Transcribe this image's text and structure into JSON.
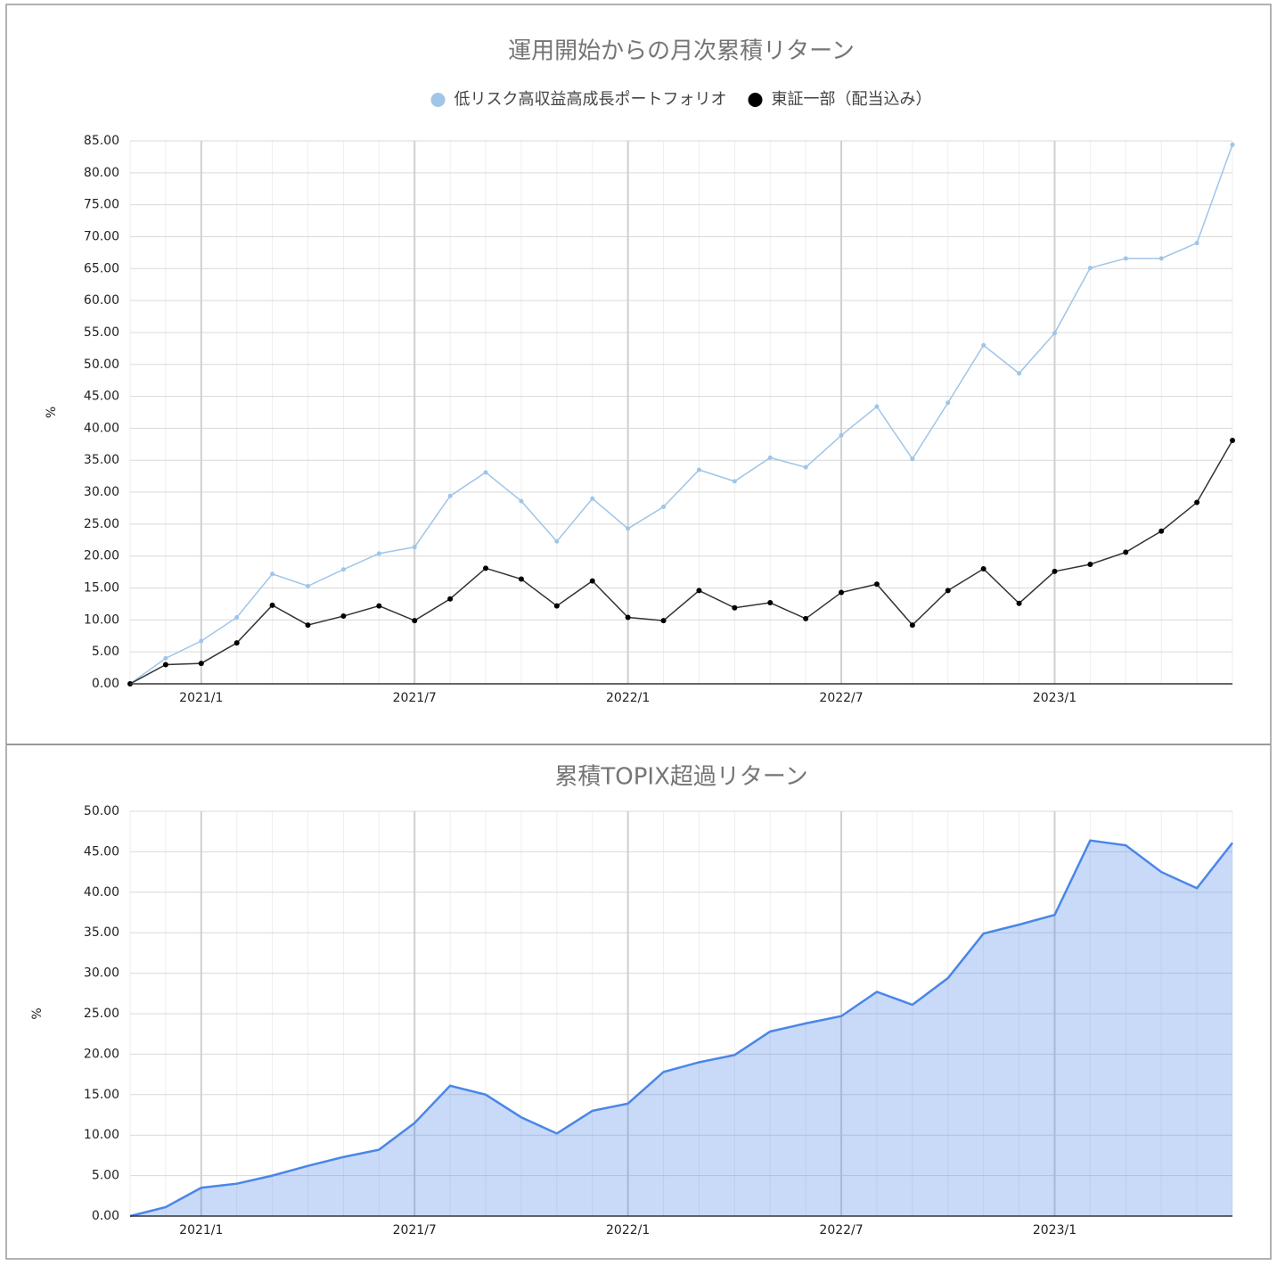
{
  "chart_data": [
    {
      "type": "line",
      "title": "運用開始からの月次累積リターン",
      "ylabel": "%",
      "legend": "top",
      "grid": true,
      "x": [
        "2020/11",
        "2020/12",
        "2021/1",
        "2021/2",
        "2021/3",
        "2021/4",
        "2021/5",
        "2021/6",
        "2021/7",
        "2021/8",
        "2021/9",
        "2021/10",
        "2021/11",
        "2021/12",
        "2022/1",
        "2022/2",
        "2022/3",
        "2022/4",
        "2022/5",
        "2022/6",
        "2022/7",
        "2022/8",
        "2022/9",
        "2022/10",
        "2022/11",
        "2022/12",
        "2023/1",
        "2023/2",
        "2023/3",
        "2023/4",
        "2023/5",
        "2023/6"
      ],
      "xticks": [
        "2021/1",
        "2021/7",
        "2022/1",
        "2022/7",
        "2023/1"
      ],
      "series": [
        {
          "name": "低リスク高収益高成長ポートフォリオ",
          "color": "#9fc5e8",
          "values": [
            0,
            4.0,
            6.7,
            10.4,
            17.2,
            15.3,
            17.9,
            20.4,
            21.4,
            29.4,
            33.1,
            28.6,
            22.3,
            29.0,
            24.3,
            27.7,
            33.5,
            31.7,
            35.4,
            33.9,
            38.9,
            43.4,
            35.2,
            44.0,
            53.0,
            48.6,
            54.9,
            65.1,
            66.6,
            66.6,
            69.0,
            84.4
          ]
        },
        {
          "name": "東証一部（配当込み）",
          "color": "#000000",
          "values": [
            0,
            3.0,
            3.2,
            6.4,
            12.3,
            9.2,
            10.6,
            12.2,
            9.9,
            13.3,
            18.1,
            16.4,
            12.2,
            16.1,
            10.4,
            9.9,
            14.6,
            11.9,
            12.7,
            10.2,
            14.3,
            15.6,
            9.2,
            14.6,
            18.0,
            12.6,
            17.6,
            18.7,
            20.6,
            23.9,
            28.4,
            38.1
          ]
        }
      ],
      "ylim": [
        0,
        85
      ],
      "yticks": [
        {
          "value": 0,
          "label": "0.00"
        },
        {
          "value": 5,
          "label": "5.00"
        },
        {
          "value": 10,
          "label": "10.00"
        },
        {
          "value": 15,
          "label": "15.00"
        },
        {
          "value": 20,
          "label": "20.00"
        },
        {
          "value": 25,
          "label": "25.00"
        },
        {
          "value": 30,
          "label": "30.00"
        },
        {
          "value": 35,
          "label": "35.00"
        },
        {
          "value": 40,
          "label": "40.00"
        },
        {
          "value": 45,
          "label": "45.00"
        },
        {
          "value": 50,
          "label": "50.00"
        },
        {
          "value": 55,
          "label": "55.00"
        },
        {
          "value": 60,
          "label": "60.00"
        },
        {
          "value": 65,
          "label": "65.00"
        },
        {
          "value": 70,
          "label": "70.00"
        },
        {
          "value": 75,
          "label": "75.00"
        },
        {
          "value": 80,
          "label": "80.00"
        },
        {
          "value": 85,
          "label": "85.00"
        }
      ]
    },
    {
      "type": "area",
      "title": "累積TOPIX超過リターン",
      "ylabel": "%",
      "grid": true,
      "x": [
        "2020/11",
        "2020/12",
        "2021/1",
        "2021/2",
        "2021/3",
        "2021/4",
        "2021/5",
        "2021/6",
        "2021/7",
        "2021/8",
        "2021/9",
        "2021/10",
        "2021/11",
        "2021/12",
        "2022/1",
        "2022/2",
        "2022/3",
        "2022/4",
        "2022/5",
        "2022/6",
        "2022/7",
        "2022/8",
        "2022/9",
        "2022/10",
        "2022/11",
        "2022/12",
        "2023/1",
        "2023/2",
        "2023/3",
        "2023/4",
        "2023/5",
        "2023/6"
      ],
      "xticks": [
        "2021/1",
        "2021/7",
        "2022/1",
        "2022/7",
        "2023/1"
      ],
      "series": [
        {
          "color": "#4a86e8",
          "values": [
            0,
            1.1,
            3.5,
            4.0,
            5.0,
            6.2,
            7.3,
            8.2,
            11.5,
            16.1,
            15.0,
            12.2,
            10.2,
            13.0,
            13.9,
            17.8,
            19.0,
            19.9,
            22.8,
            23.8,
            24.7,
            27.7,
            26.1,
            29.4,
            34.9,
            36.0,
            37.2,
            46.4,
            45.8,
            42.5,
            40.5,
            46.1
          ]
        }
      ],
      "ylim": [
        0,
        50
      ],
      "yticks": [
        {
          "value": 0,
          "label": "0.00"
        },
        {
          "value": 5,
          "label": "5.00"
        },
        {
          "value": 10,
          "label": "10.00"
        },
        {
          "value": 15,
          "label": "15.00"
        },
        {
          "value": 20,
          "label": "20.00"
        },
        {
          "value": 25,
          "label": "25.00"
        },
        {
          "value": 30,
          "label": "30.00"
        },
        {
          "value": 35,
          "label": "35.00"
        },
        {
          "value": 40,
          "label": "40.00"
        },
        {
          "value": 45,
          "label": "45.00"
        },
        {
          "value": 50,
          "label": "50.00"
        }
      ]
    }
  ]
}
